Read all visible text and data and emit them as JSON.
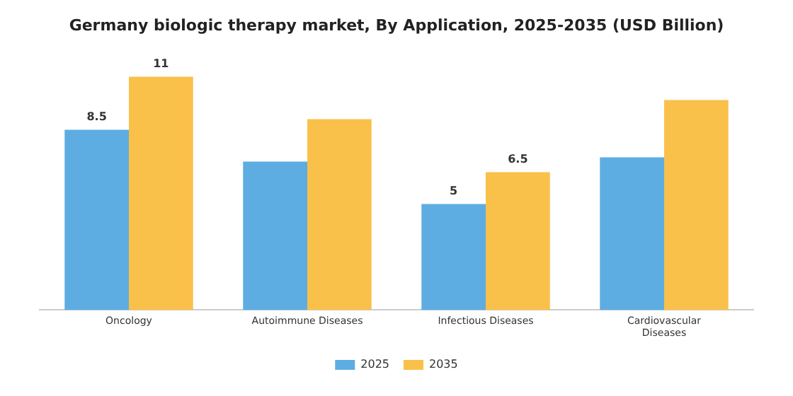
{
  "chart_data": {
    "type": "bar",
    "title": "Germany biologic therapy market, By Application, 2025-2035 (USD Billion)",
    "categories": [
      "Oncology",
      "Autoimmune Diseases",
      "Infectious Diseases",
      "Cardiovascular Diseases"
    ],
    "series": [
      {
        "name": "2025",
        "color": "#5dade2",
        "values": [
          8.5,
          7.0,
          5,
          7.2
        ],
        "value_labels": [
          "8.5",
          null,
          "5",
          null
        ]
      },
      {
        "name": "2035",
        "color": "#f9c04a",
        "values": [
          11,
          9.0,
          6.5,
          9.9
        ],
        "value_labels": [
          "11",
          null,
          "6.5",
          null
        ]
      }
    ],
    "legend": "bottom",
    "grid": false
  }
}
